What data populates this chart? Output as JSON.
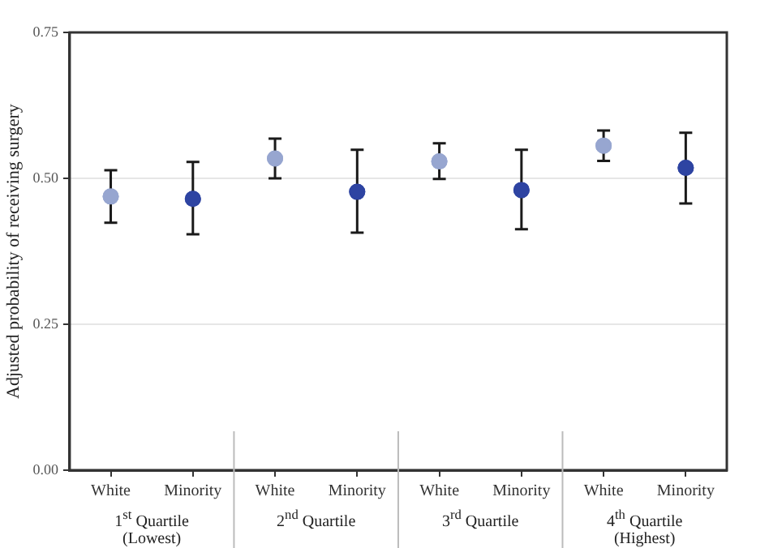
{
  "chart_data": {
    "type": "scatter",
    "ylabel": "Adjusted probability of receiving surgery",
    "categories": [
      "White",
      "Minority",
      "White",
      "Minority",
      "White",
      "Minority",
      "White",
      "Minority"
    ],
    "values": [
      0.469,
      0.465,
      0.534,
      0.477,
      0.529,
      0.48,
      0.556,
      0.518
    ],
    "errors": [
      [
        0.424,
        0.514
      ],
      [
        0.404,
        0.528
      ],
      [
        0.5,
        0.568
      ],
      [
        0.407,
        0.549
      ],
      [
        0.499,
        0.56
      ],
      [
        0.413,
        0.549
      ],
      [
        0.53,
        0.582
      ],
      [
        0.457,
        0.578
      ]
    ],
    "colors": [
      "#97a6d0",
      "#2e44a2",
      "#97a6d0",
      "#2e44a2",
      "#97a6d0",
      "#2e44a2",
      "#97a6d0",
      "#2e44a2"
    ],
    "ylim": [
      0,
      0.75
    ],
    "yticks": [
      {
        "value": 0,
        "label": "0.00"
      },
      {
        "value": 0.25,
        "label": "0.25"
      },
      {
        "value": 0.5,
        "label": "0.50"
      },
      {
        "value": 0.75,
        "label": "0.75"
      }
    ],
    "grid": "y",
    "legend": false,
    "marker": "circle",
    "annotations": [
      "1$^{st}$  Quartile\n(Lowest)",
      "2$^{nd}$  Quartile",
      "3$^{rd}$  Quartile",
      "4$^{th}$  Quartile\n(Highest)"
    ]
  }
}
